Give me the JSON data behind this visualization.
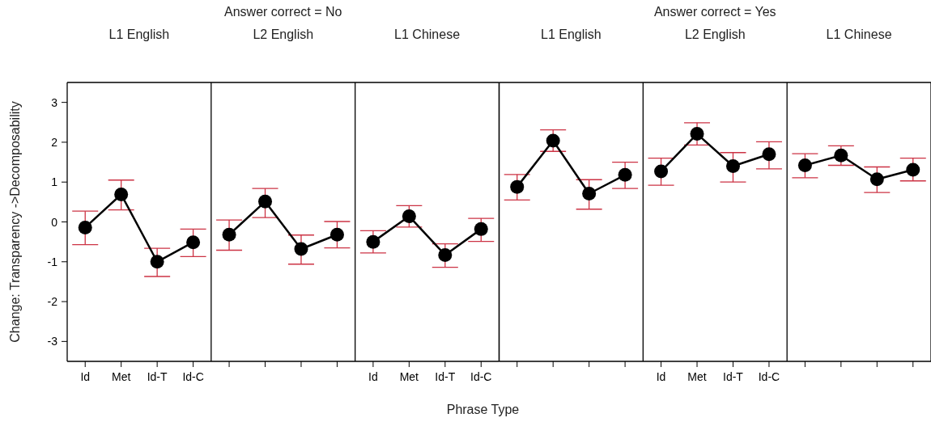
{
  "chart_data": [
    {
      "type": "line",
      "title": "Answer correct = No",
      "annotations": [
        "L1 English",
        "L2 English",
        "L1 Chinese"
      ],
      "xlabel": "Phrase Type",
      "ylabel": "Change: Transparency ->Decomposability",
      "categories": [
        "Id",
        "Met",
        "Id-T",
        "Id-C",
        null,
        null,
        null,
        null,
        "Id",
        "Met",
        "Id-T",
        "Id-C"
      ],
      "series": [
        {
          "color": "#000000",
          "values": [
            -0.14,
            0.69,
            -1.0,
            -0.51,
            null,
            null,
            null,
            null,
            null,
            null,
            null,
            null
          ],
          "errors": [
            [
              -0.57,
              0.27
            ],
            [
              0.3,
              1.05
            ],
            [
              -1.37,
              -0.66
            ],
            [
              -0.87,
              -0.18
            ],
            null,
            null,
            null,
            null,
            null,
            null,
            null,
            null
          ]
        },
        {
          "color": "#000000",
          "values": [
            null,
            null,
            null,
            null,
            -0.32,
            0.51,
            -0.68,
            -0.32,
            null,
            null,
            null,
            null
          ],
          "errors": [
            null,
            null,
            null,
            null,
            [
              -0.71,
              0.05
            ],
            [
              0.11,
              0.84
            ],
            [
              -1.06,
              -0.33
            ],
            [
              -0.65,
              0.01
            ],
            null,
            null,
            null,
            null
          ]
        },
        {
          "color": "#000000",
          "values": [
            null,
            null,
            null,
            null,
            null,
            null,
            null,
            null,
            -0.5,
            0.14,
            -0.83,
            -0.18
          ],
          "errors": [
            null,
            null,
            null,
            null,
            null,
            null,
            null,
            null,
            [
              -0.78,
              -0.22
            ],
            [
              -0.13,
              0.41
            ],
            [
              -1.14,
              -0.55
            ],
            [
              -0.49,
              0.09
            ]
          ]
        }
      ],
      "ylim": [
        -3.5,
        3.5
      ],
      "yticks": [
        -3,
        -2,
        -1,
        0,
        1,
        2,
        3
      ],
      "marker": "circle",
      "line_style": "solid"
    },
    {
      "type": "line",
      "title": "Answer correct = Yes",
      "annotations": [
        "L1 English",
        "L2 English",
        "L1 Chinese"
      ],
      "categories": [
        null,
        null,
        null,
        null,
        "Id",
        "Met",
        "Id-T",
        "Id-C",
        null,
        null,
        null,
        null
      ],
      "series": [
        {
          "color": "#000000",
          "values": [
            0.88,
            2.04,
            0.71,
            1.18,
            null,
            null,
            null,
            null,
            null,
            null,
            null,
            null
          ],
          "errors": [
            [
              0.55,
              1.19
            ],
            [
              1.77,
              2.31
            ],
            [
              0.32,
              1.06
            ],
            [
              0.84,
              1.5
            ],
            null,
            null,
            null,
            null,
            null,
            null,
            null,
            null
          ]
        },
        {
          "color": "#000000",
          "values": [
            null,
            null,
            null,
            null,
            1.27,
            2.21,
            1.4,
            1.7,
            null,
            null,
            null,
            null
          ],
          "errors": [
            null,
            null,
            null,
            null,
            [
              0.92,
              1.6
            ],
            [
              1.93,
              2.49
            ],
            [
              1.0,
              1.74
            ],
            [
              1.33,
              2.01
            ],
            null,
            null,
            null,
            null
          ]
        },
        {
          "color": "#000000",
          "values": [
            null,
            null,
            null,
            null,
            null,
            null,
            null,
            null,
            1.42,
            1.67,
            1.07,
            1.31
          ],
          "errors": [
            null,
            null,
            null,
            null,
            null,
            null,
            null,
            null,
            [
              1.11,
              1.71
            ],
            [
              1.42,
              1.91
            ],
            [
              0.74,
              1.38
            ],
            [
              1.03,
              1.6
            ]
          ]
        }
      ],
      "ylim": [
        -3.5,
        3.5
      ],
      "tick_labels": "x",
      "marker": "circle",
      "line_style": "solid"
    }
  ]
}
